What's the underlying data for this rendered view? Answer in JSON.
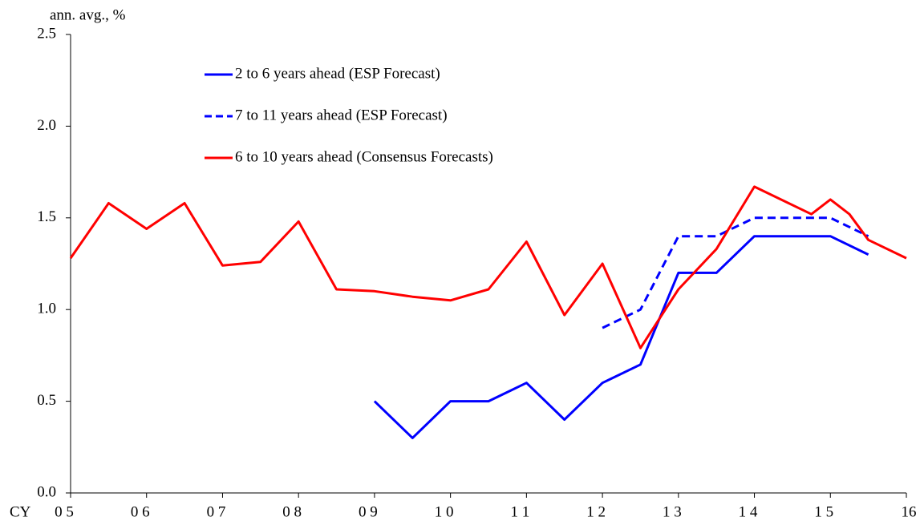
{
  "chart_data": {
    "type": "line",
    "ylabel": "ann. avg., %",
    "xlabel": "CY",
    "xlim": [
      5,
      16
    ],
    "ylim": [
      0,
      2.5
    ],
    "yticks": [
      {
        "value": 0,
        "label": "0.0"
      },
      0.5,
      {
        "value": 1,
        "label": "1.0"
      },
      1.5,
      {
        "value": 2,
        "label": "2.0"
      },
      2.5
    ],
    "xticks": [
      {
        "value": 5,
        "label": "0 5"
      },
      {
        "value": 6,
        "label": "0 6"
      },
      {
        "value": 7,
        "label": "0 7"
      },
      {
        "value": 8,
        "label": "0 8"
      },
      {
        "value": 9,
        "label": "0 9"
      },
      {
        "value": 10,
        "label": "1 0"
      },
      {
        "value": 11,
        "label": "1 1"
      },
      {
        "value": 12,
        "label": "1 2"
      },
      {
        "value": 13,
        "label": "1 3"
      },
      {
        "value": 14,
        "label": "1 4"
      },
      {
        "value": 15,
        "label": "1 5"
      },
      16
    ],
    "series": [
      {
        "name": "2 to 6 years ahead (ESP Forecast)",
        "color": "#0000ff",
        "dash": false,
        "x": [
          9,
          9.5,
          10,
          10.5,
          11,
          11.5,
          12,
          12.5,
          13,
          13.5,
          14,
          15,
          15.5
        ],
        "values": [
          0.5,
          0.3,
          0.5,
          0.5,
          0.6,
          0.4,
          0.6,
          0.7,
          1.2,
          1.2,
          1.4,
          1.4,
          1.3
        ]
      },
      {
        "name": "7 to 11 years ahead (ESP Forecast)",
        "color": "#0000ff",
        "dash": true,
        "x": [
          12,
          12.5,
          13,
          13.5,
          14,
          15,
          15.5
        ],
        "values": [
          0.9,
          1.0,
          1.4,
          1.4,
          1.5,
          1.5,
          1.4
        ]
      },
      {
        "name": "6 to 10 years ahead (Consensus Forecasts)",
        "color": "#ff0000",
        "dash": false,
        "x": [
          5,
          5.5,
          6,
          6.5,
          7,
          7.5,
          8,
          8.5,
          9,
          9.5,
          10,
          10.5,
          11,
          11.5,
          12,
          12.5,
          13,
          13.5,
          14,
          14.75,
          15,
          15.25,
          15.5,
          16
        ],
        "values": [
          1.28,
          1.58,
          1.44,
          1.58,
          1.24,
          1.26,
          1.48,
          1.11,
          1.1,
          1.07,
          1.05,
          1.11,
          1.37,
          0.97,
          1.25,
          0.79,
          1.11,
          1.33,
          1.67,
          1.52,
          1.6,
          1.52,
          1.38,
          1.28
        ]
      }
    ]
  }
}
